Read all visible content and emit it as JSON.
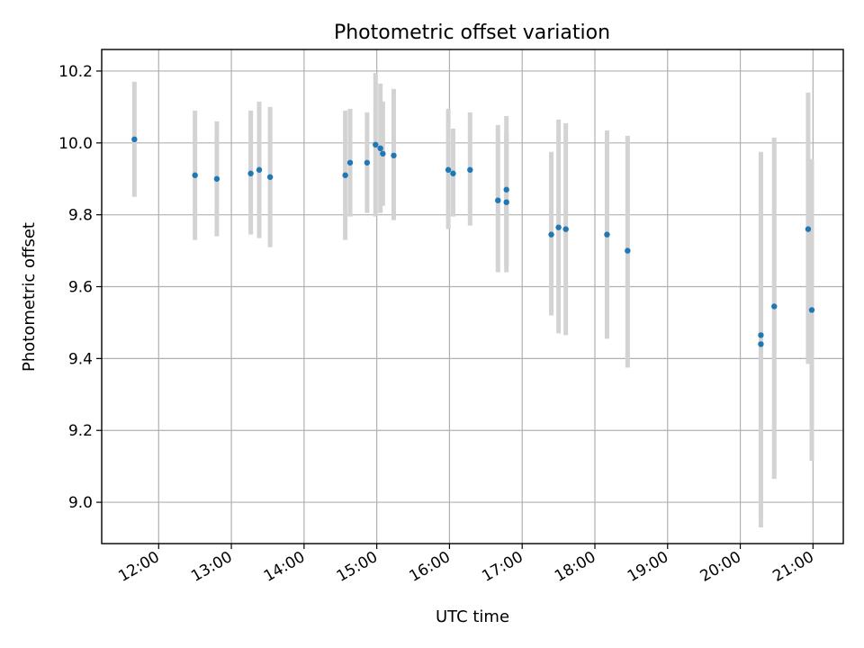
{
  "chart_data": {
    "type": "scatter",
    "title": "Photometric offset variation",
    "xlabel": "UTC time",
    "ylabel": "Photometric offset",
    "grid": true,
    "x_ticks": [
      "12:00",
      "13:00",
      "14:00",
      "15:00",
      "16:00",
      "17:00",
      "18:00",
      "19:00",
      "20:00",
      "21:00"
    ],
    "y_ticks": [
      "9.0",
      "9.2",
      "9.4",
      "9.6",
      "9.8",
      "10.0",
      "10.2"
    ],
    "xlim": [
      "11:13",
      "21:25"
    ],
    "ylim": [
      8.885,
      10.26
    ],
    "point_color": "#1f77b4",
    "errorbar_color": "#d3d3d3",
    "points": [
      {
        "x": "11:40",
        "y": 10.01,
        "ylow": 9.85,
        "yhigh": 10.17
      },
      {
        "x": "12:30",
        "y": 9.91,
        "ylow": 9.73,
        "yhigh": 10.09
      },
      {
        "x": "12:48",
        "y": 9.9,
        "ylow": 9.74,
        "yhigh": 10.06
      },
      {
        "x": "13:16",
        "y": 9.915,
        "ylow": 9.745,
        "yhigh": 10.09
      },
      {
        "x": "13:23",
        "y": 9.925,
        "ylow": 9.735,
        "yhigh": 10.115
      },
      {
        "x": "13:32",
        "y": 9.905,
        "ylow": 9.71,
        "yhigh": 10.1
      },
      {
        "x": "14:34",
        "y": 9.91,
        "ylow": 9.73,
        "yhigh": 10.09
      },
      {
        "x": "14:38",
        "y": 9.945,
        "ylow": 9.795,
        "yhigh": 10.095
      },
      {
        "x": "14:52",
        "y": 9.945,
        "ylow": 9.805,
        "yhigh": 10.085
      },
      {
        "x": "14:59",
        "y": 9.995,
        "ylow": 9.795,
        "yhigh": 10.195
      },
      {
        "x": "15:03",
        "y": 9.985,
        "ylow": 9.805,
        "yhigh": 10.165
      },
      {
        "x": "15:05",
        "y": 9.97,
        "ylow": 9.825,
        "yhigh": 10.115
      },
      {
        "x": "15:14",
        "y": 9.965,
        "ylow": 9.785,
        "yhigh": 10.15
      },
      {
        "x": "15:59",
        "y": 9.925,
        "ylow": 9.76,
        "yhigh": 10.095
      },
      {
        "x": "16:03",
        "y": 9.915,
        "ylow": 9.795,
        "yhigh": 10.04
      },
      {
        "x": "16:17",
        "y": 9.925,
        "ylow": 9.77,
        "yhigh": 10.085
      },
      {
        "x": "16:40",
        "y": 9.84,
        "ylow": 9.64,
        "yhigh": 10.05
      },
      {
        "x": "16:47",
        "y": 9.87,
        "ylow": 9.66,
        "yhigh": 10.075
      },
      {
        "x": "16:47",
        "y": 9.835,
        "ylow": 9.64,
        "yhigh": 10.03
      },
      {
        "x": "17:24",
        "y": 9.745,
        "ylow": 9.52,
        "yhigh": 9.975
      },
      {
        "x": "17:30",
        "y": 9.765,
        "ylow": 9.47,
        "yhigh": 10.065
      },
      {
        "x": "17:36",
        "y": 9.76,
        "ylow": 9.465,
        "yhigh": 10.055
      },
      {
        "x": "18:10",
        "y": 9.745,
        "ylow": 9.455,
        "yhigh": 10.035
      },
      {
        "x": "18:27",
        "y": 9.7,
        "ylow": 9.375,
        "yhigh": 10.02
      },
      {
        "x": "20:17",
        "y": 9.465,
        "ylow": 8.955,
        "yhigh": 9.975
      },
      {
        "x": "20:17",
        "y": 9.44,
        "ylow": 8.93,
        "yhigh": 9.945
      },
      {
        "x": "20:28",
        "y": 9.545,
        "ylow": 9.065,
        "yhigh": 10.015
      },
      {
        "x": "20:56",
        "y": 9.76,
        "ylow": 9.385,
        "yhigh": 10.14
      },
      {
        "x": "20:59",
        "y": 9.535,
        "ylow": 9.115,
        "yhigh": 9.955
      }
    ]
  }
}
